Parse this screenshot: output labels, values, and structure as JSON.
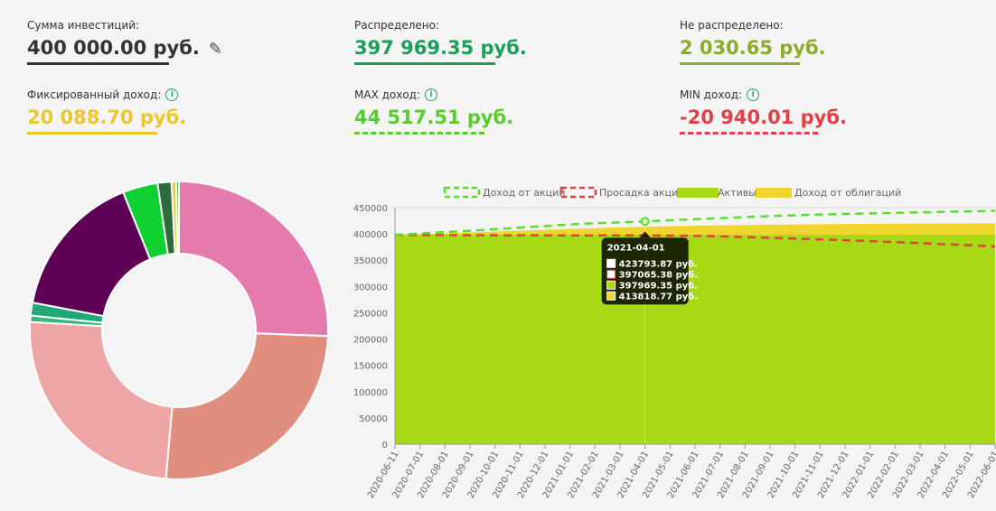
{
  "stats": {
    "investment": {
      "label": "Сумма инвестиций:",
      "value": "400 000.00 руб.",
      "color": "#333333"
    },
    "distributed": {
      "label": "Распределено:",
      "value": "397 969.35 руб.",
      "color": "#1d9e5a"
    },
    "undistributed": {
      "label": "Не распределено:",
      "value": "2 030.65 руб.",
      "color": "#8aae2c"
    },
    "fixed_income": {
      "label": "Фиксированный доход:",
      "value": "20 088.70 руб.",
      "color": "#ecc72b"
    },
    "max_income": {
      "label": "MAX доход:",
      "value": "44 517.51 руб.",
      "color": "#55cf28"
    },
    "min_income": {
      "label": "MIN доход:",
      "value": "-20 940.01 руб.",
      "color": "#e14047"
    }
  },
  "icons": {
    "edit": "pencil-icon",
    "info": "info-icon",
    "info_glyph": "i"
  },
  "donut": {
    "type": "pie",
    "slices": [
      {
        "value": 25.6,
        "color": "#e47aae"
      },
      {
        "value": 25.8,
        "color": "#e08f7e"
      },
      {
        "value": 24.5,
        "color": "#eea5a5"
      },
      {
        "value": 0.7,
        "color": "#33b97c"
      },
      {
        "value": 1.4,
        "color": "#1fa878"
      },
      {
        "value": 15.9,
        "color": "#5e0056"
      },
      {
        "value": 3.8,
        "color": "#0ed12f"
      },
      {
        "value": 1.5,
        "color": "#2e6a3c"
      },
      {
        "value": 0.5,
        "color": "#e0d23c"
      },
      {
        "value": 0.3,
        "color": "#6fbd27"
      }
    ]
  },
  "chart_data": {
    "type": "area",
    "legend": [
      {
        "label": "Доход от акций",
        "style": "dashed",
        "color": "#55e02a"
      },
      {
        "label": "Просадка акций",
        "style": "dashed",
        "color": "#e14047"
      },
      {
        "label": "Активы",
        "style": "fill",
        "color": "#a8d915"
      },
      {
        "label": "Доход от облигаций",
        "style": "fill",
        "color": "#f0d52e"
      }
    ],
    "x": [
      "2020-06-11",
      "2020-07-01",
      "2020-08-01",
      "2020-09-01",
      "2020-10-01",
      "2020-11-01",
      "2020-12-01",
      "2021-01-01",
      "2021-02-01",
      "2021-03-01",
      "2021-04-01",
      "2021-05-01",
      "2021-06-01",
      "2021-07-01",
      "2021-08-01",
      "2021-09-01",
      "2021-10-01",
      "2021-11-01",
      "2021-12-01",
      "2022-01-01",
      "2022-02-01",
      "2022-03-01",
      "2022-04-01",
      "2022-05-01",
      "2022-06-01"
    ],
    "series": [
      {
        "name": "Доход от акций",
        "values": [
          398000,
          401000,
          403500,
          406000,
          409000,
          412000,
          415000,
          418000,
          420500,
          422000,
          423794,
          426000,
          428000,
          430000,
          432000,
          434000,
          435500,
          437000,
          438000,
          439000,
          440000,
          441000,
          442000,
          443000,
          444000
        ]
      },
      {
        "name": "Просадка акций",
        "values": [
          398000,
          397900,
          397700,
          397600,
          397500,
          397400,
          397300,
          397200,
          397150,
          397100,
          397065,
          396800,
          396300,
          395500,
          394000,
          392500,
          391000,
          389500,
          388000,
          386500,
          384500,
          382500,
          380500,
          378500,
          376000
        ]
      },
      {
        "name": "Активы",
        "values": [
          397969,
          397969,
          397969,
          397969,
          397969,
          397969,
          397969,
          397969,
          397969,
          397969,
          397969,
          397969,
          397969,
          397969,
          397969,
          397969,
          397969,
          397969,
          397969,
          397969,
          397969,
          397969,
          397969,
          397969,
          397969
        ]
      },
      {
        "name": "Доход от облигаций",
        "values": [
          398000,
          399600,
          401200,
          402800,
          404500,
          406200,
          407800,
          409500,
          411000,
          412400,
          413819,
          414800,
          415700,
          416400,
          417000,
          417600,
          418100,
          418500,
          418900,
          419200,
          419500,
          419700,
          419900,
          420000,
          420100
        ]
      }
    ],
    "ylim": [
      0,
      450000
    ],
    "yticks": [
      0,
      50000,
      100000,
      150000,
      200000,
      250000,
      300000,
      350000,
      400000,
      450000
    ],
    "grid": true,
    "tooltip": {
      "index": 10,
      "title": "2021-04-01",
      "items": [
        {
          "text": "423793.87 руб.",
          "color": "#ffffff",
          "border": "#ffffff"
        },
        {
          "text": "397065.38 руб.",
          "color": "#ffffff",
          "border": "#e14047"
        },
        {
          "text": "397969.35 руб.",
          "color": "#a8d915",
          "border": "#ffffff"
        },
        {
          "text": "413818.77 руб.",
          "color": "#f0d52e",
          "border": "#ffffff"
        }
      ]
    }
  }
}
